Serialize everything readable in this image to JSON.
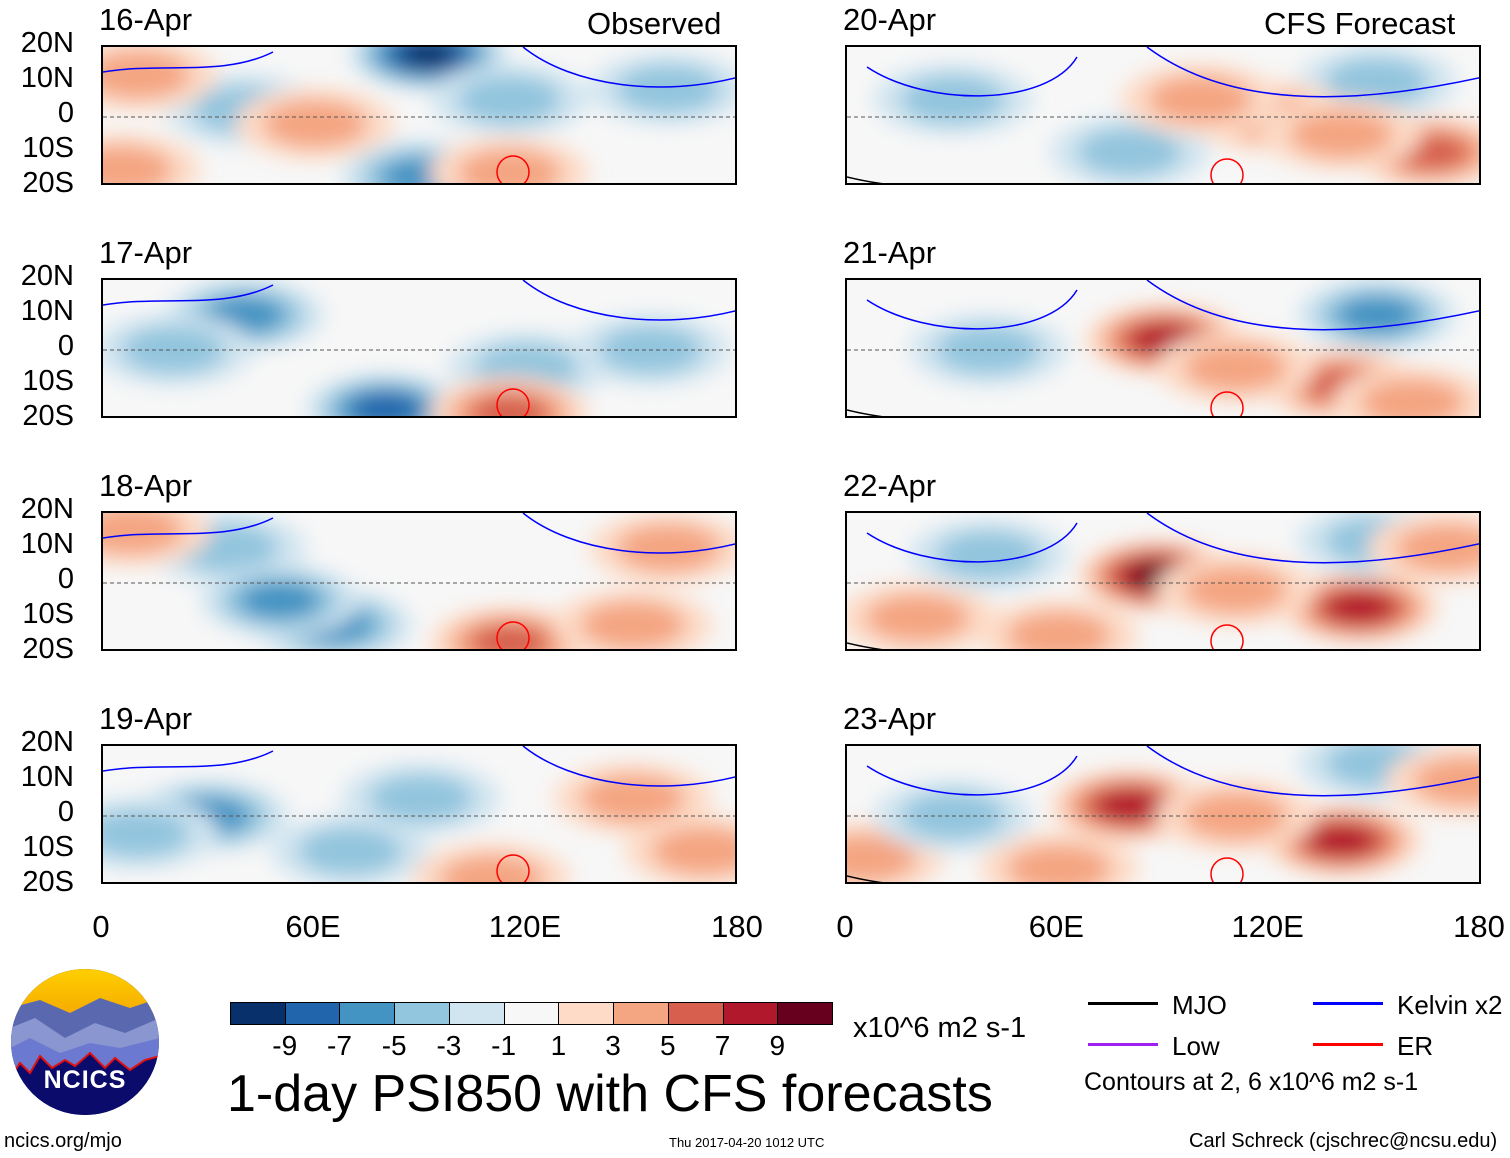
{
  "figure_title": "1-day PSI850 with CFS forecasts",
  "left_header": "Observed",
  "right_header": "CFS Forecast",
  "footer_left": "ncics.org/mjo",
  "footer_center": "Thu 2017-04-20 1012 UTC",
  "footer_right": "Carl Schreck (cjschrec@ncsu.edu)",
  "logo_text": "NCICS",
  "colorbar": {
    "unit": "x10^6 m2 s-1",
    "ticks": [
      "-9",
      "-7",
      "-5",
      "-3",
      "-1",
      "1",
      "3",
      "5",
      "7",
      "9"
    ],
    "colors": [
      "#08306b",
      "#2166ac",
      "#4393c3",
      "#92c5de",
      "#d1e5f0",
      "#f7f7f7",
      "#fddbc7",
      "#f4a582",
      "#d6604d",
      "#b2182b",
      "#67001f"
    ]
  },
  "legend": {
    "items": [
      {
        "label": "MJO",
        "color": "#000000"
      },
      {
        "label": "Kelvin x2",
        "color": "#0000ff"
      },
      {
        "label": "Low",
        "color": "#a020f0"
      },
      {
        "label": "ER",
        "color": "#ff0000"
      }
    ],
    "note": "Contours at 2, 6 x10^6 m2 s-1"
  },
  "chart_data": {
    "type": "heatmap",
    "title": "1-day PSI850 with CFS forecasts",
    "x_ticks": [
      "0",
      "60E",
      "120E",
      "180"
    ],
    "x_range_lon": [
      0,
      180
    ],
    "y_ticks": [
      "20N",
      "10N",
      "0",
      "10S",
      "20S"
    ],
    "y_range_lat": [
      -20,
      20
    ],
    "panels": [
      {
        "title": "16-Apr",
        "source": "Observed",
        "blobs": [
          [
            92,
            18,
            -9
          ],
          [
            90,
            -17,
            -5
          ],
          [
            115,
            5,
            -3
          ],
          [
            160,
            8,
            -3
          ],
          [
            40,
            2,
            -2
          ],
          [
            10,
            12,
            2
          ],
          [
            5,
            -15,
            2
          ],
          [
            115,
            -16,
            3
          ],
          [
            60,
            -2,
            2
          ]
        ]
      },
      {
        "title": "17-Apr",
        "source": "Observed",
        "blobs": [
          [
            80,
            -17,
            -6
          ],
          [
            40,
            10,
            -4
          ],
          [
            120,
            -5,
            -3
          ],
          [
            155,
            0,
            -2
          ],
          [
            115,
            -18,
            5
          ],
          [
            20,
            0,
            -2
          ]
        ]
      },
      {
        "title": "18-Apr",
        "source": "Observed",
        "blobs": [
          [
            65,
            -12,
            -5
          ],
          [
            35,
            10,
            -3
          ],
          [
            50,
            -5,
            -4
          ],
          [
            115,
            -17,
            5
          ],
          [
            160,
            10,
            2
          ],
          [
            150,
            -12,
            2
          ],
          [
            8,
            15,
            2
          ]
        ]
      },
      {
        "title": "19-Apr",
        "source": "Observed",
        "blobs": [
          [
            30,
            0,
            -4
          ],
          [
            70,
            -10,
            -3
          ],
          [
            90,
            5,
            -2
          ],
          [
            150,
            5,
            2
          ],
          [
            170,
            -10,
            2
          ],
          [
            110,
            -18,
            3
          ],
          [
            10,
            -5,
            -2
          ]
        ]
      },
      {
        "title": "20-Apr",
        "source": "CFS Forecast",
        "blobs": [
          [
            150,
            10,
            -3
          ],
          [
            80,
            -10,
            -3
          ],
          [
            165,
            -10,
            4
          ],
          [
            120,
            0,
            2
          ],
          [
            140,
            -5,
            3
          ],
          [
            30,
            5,
            -2
          ],
          [
            100,
            5,
            2
          ]
        ]
      },
      {
        "title": "21-Apr",
        "source": "CFS Forecast",
        "blobs": [
          [
            90,
            3,
            6
          ],
          [
            150,
            10,
            -4
          ],
          [
            140,
            -10,
            4
          ],
          [
            160,
            -15,
            3
          ],
          [
            40,
            0,
            -2
          ],
          [
            110,
            -5,
            2
          ]
        ]
      },
      {
        "title": "22-Apr",
        "source": "CFS Forecast",
        "blobs": [
          [
            88,
            2,
            9
          ],
          [
            145,
            -7,
            6
          ],
          [
            150,
            12,
            -3
          ],
          [
            20,
            -10,
            2
          ],
          [
            60,
            -15,
            2
          ],
          [
            110,
            -2,
            2
          ],
          [
            170,
            10,
            2
          ],
          [
            40,
            8,
            -2
          ]
        ]
      },
      {
        "title": "23-Apr",
        "source": "CFS Forecast",
        "blobs": [
          [
            80,
            3,
            7
          ],
          [
            140,
            -7,
            6
          ],
          [
            150,
            15,
            -3
          ],
          [
            5,
            -12,
            2
          ],
          [
            60,
            -15,
            2
          ],
          [
            110,
            0,
            2
          ],
          [
            175,
            10,
            3
          ],
          [
            30,
            0,
            -2
          ]
        ]
      }
    ]
  }
}
